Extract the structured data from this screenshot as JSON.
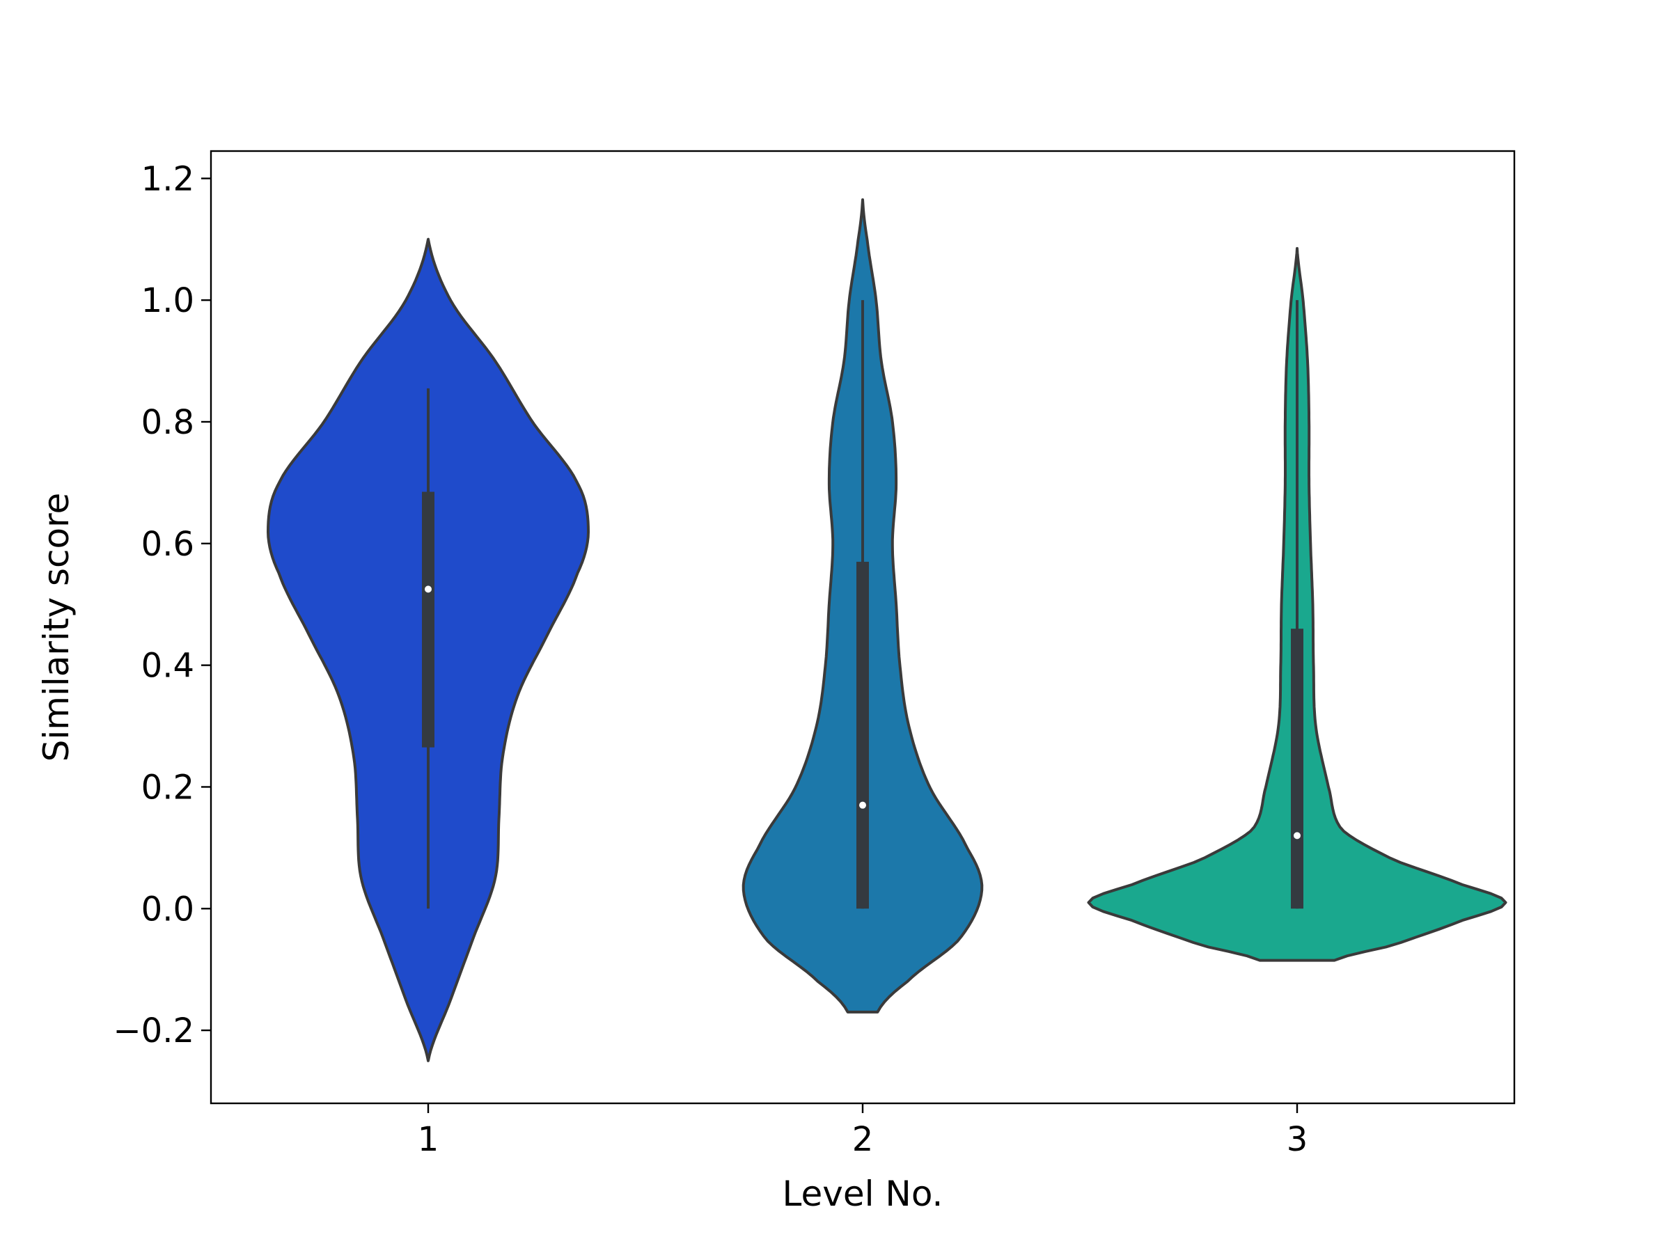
{
  "chart_data": {
    "type": "violin",
    "title": "",
    "xlabel": "Level No.",
    "ylabel": "Similarity score",
    "ylim": [
      -0.32,
      1.245
    ],
    "yticks": [
      -0.2,
      0.0,
      0.2,
      0.4,
      0.6,
      0.8,
      1.0,
      1.2
    ],
    "ytick_labels": [
      "−0.2",
      "0.0",
      "0.2",
      "0.4",
      "0.6",
      "0.8",
      "1.0",
      "1.2"
    ],
    "categories": [
      "1",
      "2",
      "3"
    ],
    "grid": false,
    "legend": "none",
    "series": [
      {
        "category": "1",
        "color": "#1f4bcb",
        "min": 0.0,
        "q1": 0.265,
        "median": 0.525,
        "q3": 0.685,
        "max": 0.855,
        "kde_low": -0.25,
        "kde_high": 1.1,
        "profile": [
          [
            -0.25,
            0.0
          ],
          [
            -0.15,
            0.03
          ],
          [
            -0.05,
            0.06
          ],
          [
            0.05,
            0.09
          ],
          [
            0.15,
            0.095
          ],
          [
            0.25,
            0.1
          ],
          [
            0.35,
            0.12
          ],
          [
            0.45,
            0.16
          ],
          [
            0.55,
            0.2
          ],
          [
            0.62,
            0.215
          ],
          [
            0.7,
            0.2
          ],
          [
            0.8,
            0.14
          ],
          [
            0.9,
            0.09
          ],
          [
            1.0,
            0.03
          ],
          [
            1.1,
            0.0
          ]
        ]
      },
      {
        "category": "2",
        "color": "#1c78aa",
        "min": 0.0,
        "q1": 0.0,
        "median": 0.17,
        "q3": 0.57,
        "max": 1.0,
        "kde_low": -0.17,
        "kde_high": 1.165,
        "profile": [
          [
            -0.17,
            0.02
          ],
          [
            -0.12,
            0.06
          ],
          [
            -0.05,
            0.13
          ],
          [
            0.03,
            0.16
          ],
          [
            0.1,
            0.14
          ],
          [
            0.2,
            0.09
          ],
          [
            0.3,
            0.062
          ],
          [
            0.4,
            0.05
          ],
          [
            0.5,
            0.045
          ],
          [
            0.6,
            0.04
          ],
          [
            0.7,
            0.045
          ],
          [
            0.8,
            0.04
          ],
          [
            0.9,
            0.025
          ],
          [
            1.0,
            0.018
          ],
          [
            1.1,
            0.006
          ],
          [
            1.165,
            0.0
          ]
        ]
      },
      {
        "category": "3",
        "color": "#1aa88e",
        "min": 0.0,
        "q1": 0.0,
        "median": 0.12,
        "q3": 0.46,
        "max": 1.0,
        "kde_low": -0.085,
        "kde_high": 1.085,
        "profile": [
          [
            -0.085,
            0.05
          ],
          [
            -0.06,
            0.13
          ],
          [
            -0.02,
            0.22
          ],
          [
            0.01,
            0.28
          ],
          [
            0.04,
            0.22
          ],
          [
            0.08,
            0.13
          ],
          [
            0.13,
            0.06
          ],
          [
            0.2,
            0.042
          ],
          [
            0.3,
            0.025
          ],
          [
            0.4,
            0.022
          ],
          [
            0.5,
            0.021
          ],
          [
            0.6,
            0.018
          ],
          [
            0.7,
            0.016
          ],
          [
            0.8,
            0.016
          ],
          [
            0.9,
            0.014
          ],
          [
            1.0,
            0.008
          ],
          [
            1.085,
            0.0
          ]
        ]
      }
    ]
  }
}
